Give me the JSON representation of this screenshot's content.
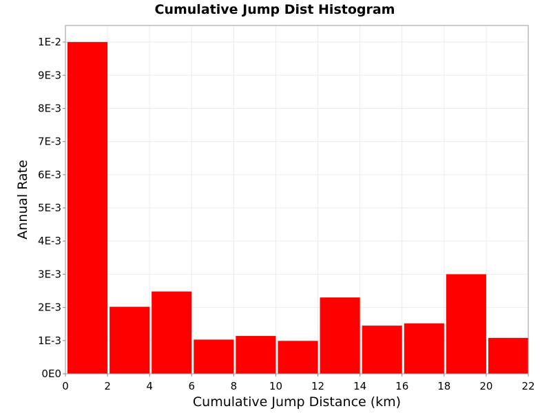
{
  "chart_data": {
    "type": "bar",
    "title": "Cumulative Jump Dist Histogram",
    "xlabel": "Cumulative Jump Distance (km)",
    "ylabel": "Annual Rate",
    "xlim": [
      0,
      22
    ],
    "ylim": [
      0,
      0.0105
    ],
    "x_ticks": [
      0,
      2,
      4,
      6,
      8,
      10,
      12,
      14,
      16,
      18,
      20,
      22
    ],
    "x_tick_labels": [
      "0",
      "2",
      "4",
      "6",
      "8",
      "10",
      "12",
      "14",
      "16",
      "18",
      "20",
      "22"
    ],
    "y_ticks": [
      0,
      0.001,
      0.002,
      0.003,
      0.004,
      0.005,
      0.006,
      0.007,
      0.008,
      0.009,
      0.01
    ],
    "y_tick_labels": [
      "0E0",
      "1E-3",
      "2E-3",
      "3E-3",
      "4E-3",
      "5E-3",
      "6E-3",
      "7E-3",
      "8E-3",
      "9E-3",
      "1E-2"
    ],
    "bin_width": 2,
    "categories": [
      "0-2",
      "2-4",
      "4-6",
      "6-8",
      "8-10",
      "10-12",
      "12-14",
      "14-16",
      "16-18",
      "18-20",
      "20-22"
    ],
    "bin_starts": [
      0,
      2,
      4,
      6,
      8,
      10,
      12,
      14,
      16,
      18,
      20
    ],
    "values": [
      0.01,
      0.00202,
      0.00248,
      0.00103,
      0.00114,
      0.00099,
      0.0023,
      0.00145,
      0.00152,
      0.003,
      0.00108
    ],
    "bar_color": "#ff0000",
    "grid": true,
    "legend": "none"
  }
}
